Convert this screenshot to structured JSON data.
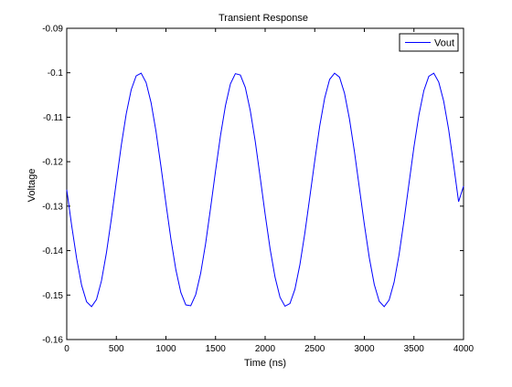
{
  "chart_data": {
    "type": "line",
    "title": "Transient Response",
    "xlabel": "Time (ns)",
    "ylabel": "Voltage",
    "xlim": [
      0,
      4000
    ],
    "ylim": [
      -0.16,
      -0.09
    ],
    "xticks": [
      0,
      500,
      1000,
      1500,
      2000,
      2500,
      3000,
      3500,
      4000
    ],
    "xtick_labels": [
      "0",
      "500",
      "1000",
      "1500",
      "2000",
      "2500",
      "3000",
      "3500",
      "4000"
    ],
    "yticks": [
      -0.16,
      -0.15,
      -0.14,
      -0.13,
      -0.12,
      -0.11,
      -0.1,
      -0.09
    ],
    "ytick_labels": [
      "-0.16",
      "-0.15",
      "-0.14",
      "-0.13",
      "-0.12",
      "-0.11",
      "-0.1",
      "-0.09"
    ],
    "grid": false,
    "legend_position": "top-right",
    "series": [
      {
        "name": "Vout",
        "color": "#0000ff",
        "x": [
          0,
          50,
          100,
          150,
          200,
          250,
          300,
          350,
          400,
          450,
          500,
          550,
          600,
          650,
          700,
          750,
          800,
          850,
          900,
          950,
          1000,
          1050,
          1100,
          1150,
          1200,
          1250,
          1300,
          1350,
          1400,
          1450,
          1500,
          1550,
          1600,
          1650,
          1700,
          1750,
          1800,
          1850,
          1900,
          1950,
          2000,
          2050,
          2100,
          2150,
          2200,
          2250,
          2300,
          2350,
          2400,
          2450,
          2500,
          2550,
          2600,
          2650,
          2700,
          2750,
          2800,
          2850,
          2900,
          2950,
          3000,
          3050,
          3100,
          3150,
          3200,
          3250,
          3300,
          3350,
          3400,
          3450,
          3500,
          3550,
          3600,
          3650,
          3700,
          3750,
          3800,
          3850,
          3900,
          3950,
          4000
        ],
        "y": [
          -0.1263,
          -0.1344,
          -0.1418,
          -0.1478,
          -0.1515,
          -0.1526,
          -0.151,
          -0.1468,
          -0.1405,
          -0.1328,
          -0.1245,
          -0.1163,
          -0.1092,
          -0.1038,
          -0.1007,
          -0.1001,
          -0.1022,
          -0.1067,
          -0.1132,
          -0.1211,
          -0.1294,
          -0.1374,
          -0.1443,
          -0.1494,
          -0.1522,
          -0.1524,
          -0.1499,
          -0.1451,
          -0.1384,
          -0.1304,
          -0.1221,
          -0.1141,
          -0.1074,
          -0.1025,
          -0.1002,
          -0.1005,
          -0.1033,
          -0.1085,
          -0.1154,
          -0.1235,
          -0.1318,
          -0.1396,
          -0.146,
          -0.1505,
          -0.1525,
          -0.1519,
          -0.1487,
          -0.1432,
          -0.1361,
          -0.128,
          -0.1198,
          -0.112,
          -0.1057,
          -0.1015,
          -0.1001,
          -0.101,
          -0.1046,
          -0.1104,
          -0.1177,
          -0.1259,
          -0.1341,
          -0.1416,
          -0.1476,
          -0.1514,
          -0.1526,
          -0.1511,
          -0.1471,
          -0.1409,
          -0.1332,
          -0.1249,
          -0.1167,
          -0.1095,
          -0.104,
          -0.1008,
          -0.1001,
          -0.1021,
          -0.1064,
          -0.1128,
          -0.1207,
          -0.129,
          -0.1255
        ]
      }
    ]
  }
}
